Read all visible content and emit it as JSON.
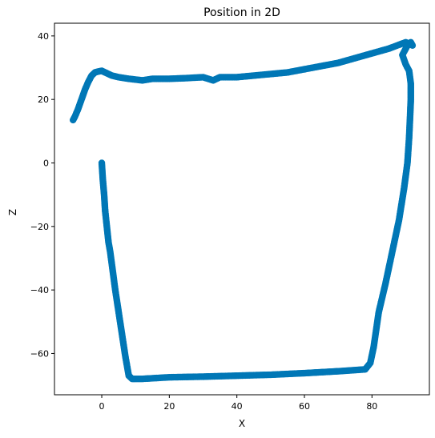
{
  "chart_data": {
    "type": "scatter",
    "title": "Position in 2D",
    "xlabel": "X",
    "ylabel": "Z",
    "xlim": [
      -14,
      97
    ],
    "ylim": [
      -73,
      44
    ],
    "xticks": [
      0,
      20,
      40,
      60,
      80
    ],
    "yticks": [
      -60,
      -40,
      -20,
      0,
      20,
      40
    ],
    "xtick_labels": [
      "0",
      "20",
      "40",
      "60",
      "80"
    ],
    "ytick_labels": [
      "−60",
      "−40",
      "−20",
      "0",
      "20",
      "40"
    ],
    "grid": false,
    "marker_color": "#0077b6",
    "points": {
      "x": [
        0,
        0.3,
        0.7,
        1,
        1.5,
        2,
        2.5,
        3,
        4,
        5,
        6,
        7,
        8,
        9,
        10,
        12,
        20,
        30,
        40,
        50,
        60,
        70,
        78,
        79.5,
        80.5,
        82,
        84,
        86,
        88,
        89.5,
        90.5,
        91,
        91.3,
        91.5,
        91.5,
        91,
        90,
        89,
        90.5,
        91.5,
        92,
        90,
        85,
        80,
        75,
        70,
        65,
        60,
        55,
        50,
        45,
        40,
        35,
        33,
        30,
        25,
        20,
        15,
        12,
        8,
        5,
        3,
        1,
        0,
        -1,
        -2,
        -3,
        -4,
        -5,
        -6,
        -7,
        -8,
        -8.5
      ],
      "y": [
        0,
        -5,
        -10,
        -15,
        -20,
        -25,
        -28,
        -32,
        -40,
        -47,
        -54,
        -61,
        -67,
        -68,
        -68,
        -68,
        -67.5,
        -67.3,
        -67,
        -66.7,
        -66.2,
        -65.6,
        -65,
        -63,
        -58,
        -47,
        -38,
        -28,
        -18,
        -8,
        0,
        8,
        15,
        20,
        25,
        29,
        31,
        34,
        37,
        38,
        37,
        38,
        36,
        34.5,
        33,
        31.5,
        30.5,
        29.5,
        28.5,
        28,
        27.5,
        27,
        27,
        26,
        27,
        26.7,
        26.5,
        26.5,
        26,
        26.5,
        27,
        27.5,
        28.5,
        29,
        28.8,
        28.5,
        27.5,
        25.5,
        23,
        20,
        17,
        14.5,
        13.5
      ]
    }
  }
}
